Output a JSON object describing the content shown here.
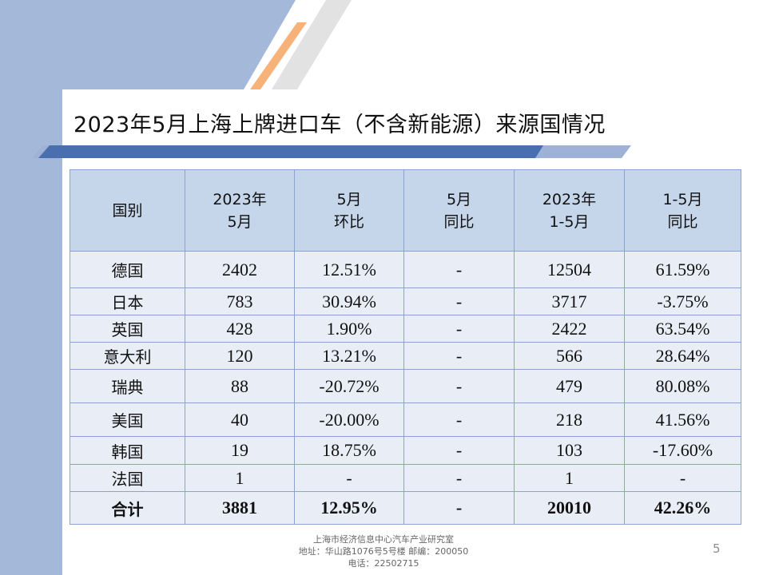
{
  "title": "2023年5月上海上牌进口车（不含新能源）来源国情况",
  "table": {
    "headers": [
      [
        "国别"
      ],
      [
        "2023年",
        "5月"
      ],
      [
        "5月",
        "环比"
      ],
      [
        "5月",
        "同比"
      ],
      [
        "2023年",
        "1-5月"
      ],
      [
        "1-5月",
        "同比"
      ]
    ],
    "rows": [
      [
        "德国",
        "2402",
        "12.51%",
        "-",
        "12504",
        "61.59%"
      ],
      [
        "日本",
        "783",
        "30.94%",
        "-",
        "3717",
        "-3.75%"
      ],
      [
        "英国",
        "428",
        "1.90%",
        "-",
        "2422",
        "63.54%"
      ],
      [
        "意大利",
        "120",
        "13.21%",
        "-",
        "566",
        "28.64%"
      ],
      [
        "瑞典",
        "88",
        "-20.72%",
        "-",
        "479",
        "80.08%"
      ],
      [
        "美国",
        "40",
        "-20.00%",
        "-",
        "218",
        "41.56%"
      ],
      [
        "韩国",
        "19",
        "18.75%",
        "-",
        "103",
        "-17.60%"
      ],
      [
        "法国",
        "1",
        "-",
        "-",
        "1",
        "-"
      ]
    ],
    "total": [
      "合计",
      "3881",
      "12.95%",
      "-",
      "20010",
      "42.26%"
    ]
  },
  "footer": {
    "line1": "上海市经济信息中心汽车产业研究室",
    "line2": "地址：华山路1076号5号楼   邮编：200050",
    "line3": "电话：22502715"
  },
  "page_number": "5",
  "colors": {
    "sidebar": "#a4b8d9",
    "header_fill": "#c5d5ea",
    "cell_fill": "#e9eef6",
    "accent_orange": "#f7b27a",
    "title_bar": "#4a6fae"
  }
}
